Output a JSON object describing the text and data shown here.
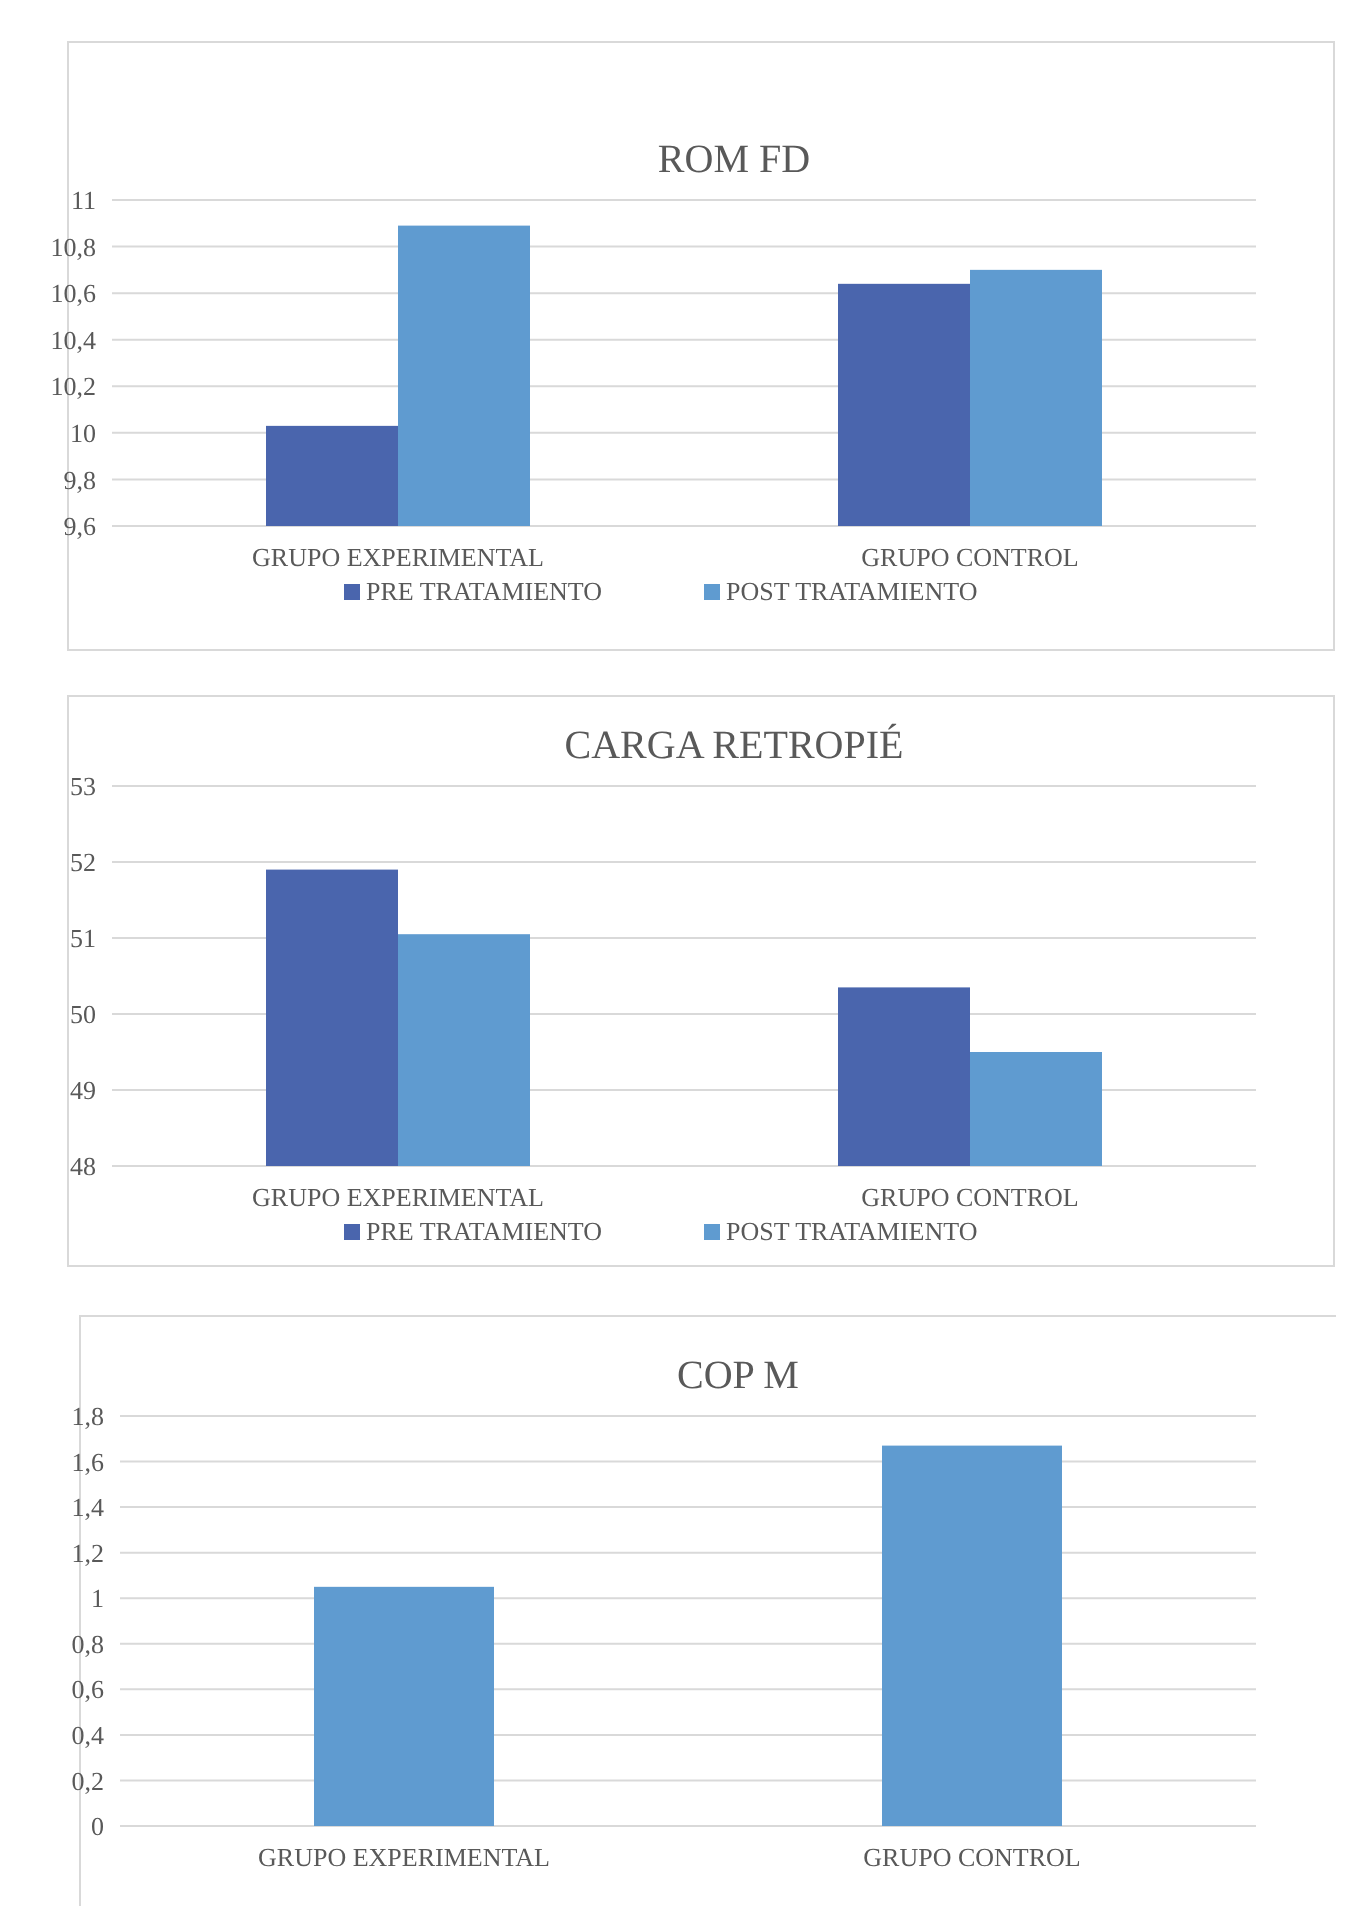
{
  "chart_data": [
    {
      "type": "bar",
      "title": "ROM FD",
      "categories": [
        "GRUPO EXPERIMENTAL",
        "GRUPO CONTROL"
      ],
      "series": [
        {
          "name": "PRE TRATAMIENTO",
          "color": "#4a65ad",
          "values": [
            10.03,
            10.64
          ]
        },
        {
          "name": "POST TRATAMIENTO",
          "color": "#5f9bd0",
          "values": [
            10.89,
            10.7
          ]
        }
      ],
      "ylim": [
        9.6,
        11
      ],
      "yticks": [
        {
          "value": 9.6,
          "label": "9,6"
        },
        {
          "value": 9.8,
          "label": "9,8"
        },
        10,
        {
          "value": 10.2,
          "label": "10,2"
        },
        {
          "value": 10.4,
          "label": "10,4"
        },
        {
          "value": 10.6,
          "label": "10,6"
        },
        {
          "value": 10.8,
          "label": "10,8"
        },
        11
      ],
      "grid": "y",
      "legend": "bottom"
    },
    {
      "type": "bar",
      "title": "CARGA RETROPIÉ",
      "categories": [
        "GRUPO EXPERIMENTAL",
        "GRUPO CONTROL"
      ],
      "series": [
        {
          "name": "PRE TRATAMIENTO",
          "color": "#4a65ad",
          "values": [
            51.9,
            50.35
          ]
        },
        {
          "name": "POST TRATAMIENTO",
          "color": "#5f9bd0",
          "values": [
            51.05,
            49.5
          ]
        }
      ],
      "ylim": [
        48,
        53
      ],
      "yticks": [
        48,
        49,
        50,
        51,
        52,
        53
      ],
      "grid": "y",
      "legend": "bottom"
    },
    {
      "type": "bar",
      "title": "COP M",
      "categories": [
        "GRUPO EXPERIMENTAL",
        "GRUPO CONTROL"
      ],
      "values": [
        1.05,
        1.67
      ],
      "color": "#5f9bd0",
      "ylim": [
        0,
        1.8
      ],
      "yticks": [
        0,
        {
          "value": 0.2,
          "label": "0,2"
        },
        {
          "value": 0.4,
          "label": "0,4"
        },
        {
          "value": 0.6,
          "label": "0,6"
        },
        {
          "value": 0.8,
          "label": "0,8"
        },
        1,
        {
          "value": 1.2,
          "label": "1,2"
        },
        {
          "value": 1.4,
          "label": "1,4"
        },
        {
          "value": 1.6,
          "label": "1,6"
        },
        {
          "value": 1.8,
          "label": "1,8"
        }
      ],
      "grid": "y"
    }
  ]
}
